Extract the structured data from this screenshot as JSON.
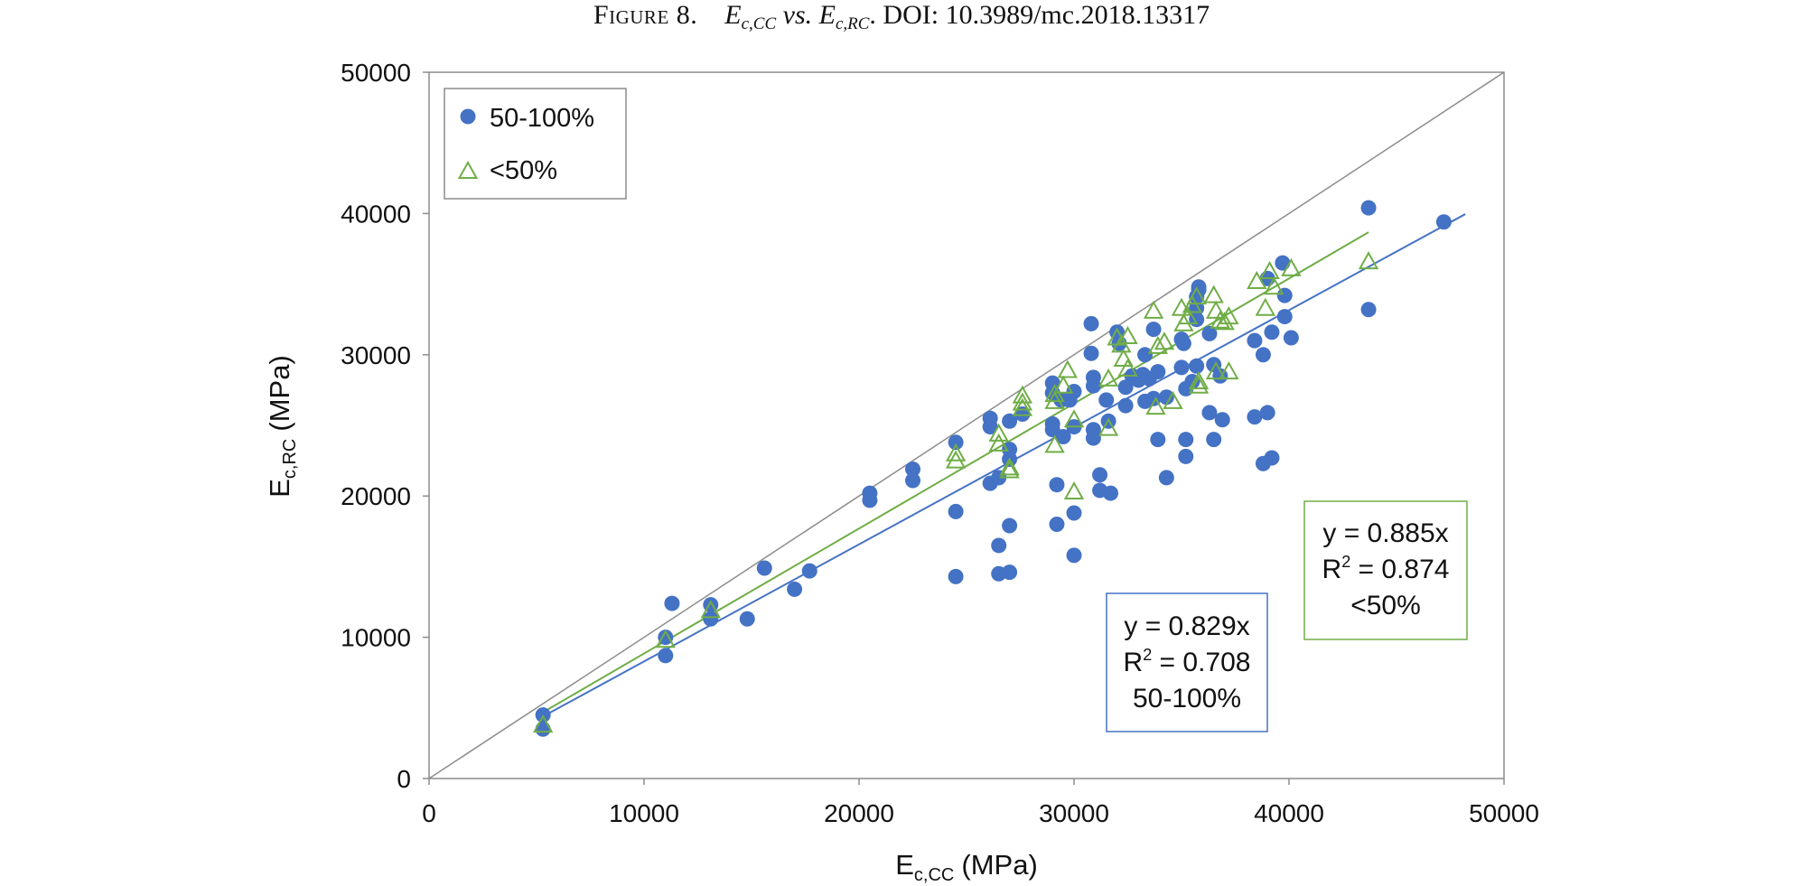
{
  "figure": {
    "label": "Figure 8.",
    "x_sym": "E",
    "x_sub": "c,CC",
    "vs": "vs.",
    "y_sym": "E",
    "y_sub": "c,RC",
    "doi": "DOI: 10.3989/mc.2018.13317"
  },
  "chart_data": {
    "type": "scatter",
    "title": "",
    "xlabel": {
      "main": "E",
      "sub": "c,CC",
      "unit": "(MPa)"
    },
    "ylabel": {
      "main": "E",
      "sub": "c,RC",
      "unit": "(MPa)"
    },
    "xlim": [
      0,
      50000
    ],
    "ylim": [
      0,
      50000
    ],
    "xticks": [
      "0",
      "10000",
      "20000",
      "30000",
      "40000",
      "50000"
    ],
    "yticks": [
      "0",
      "10000",
      "20000",
      "30000",
      "40000",
      "50000"
    ],
    "grid": false,
    "legend_position": "top-left",
    "colors": {
      "blue": "#4472C4",
      "green": "#70AD47",
      "reference": "#8c8c8c"
    },
    "series": [
      {
        "name": "50-100%",
        "marker": "circle",
        "color": "#4472C4",
        "points": [
          [
            5300,
            4500
          ],
          [
            5300,
            3500
          ],
          [
            11000,
            10000
          ],
          [
            11000,
            8700
          ],
          [
            11300,
            12400
          ],
          [
            13100,
            12300
          ],
          [
            13100,
            11300
          ],
          [
            14800,
            11300
          ],
          [
            15600,
            14900
          ],
          [
            17000,
            13400
          ],
          [
            17700,
            14700
          ],
          [
            20500,
            20200
          ],
          [
            20500,
            19700
          ],
          [
            22500,
            21900
          ],
          [
            22500,
            21100
          ],
          [
            24500,
            23800
          ],
          [
            24500,
            18900
          ],
          [
            24500,
            14300
          ],
          [
            26100,
            25500
          ],
          [
            26100,
            24900
          ],
          [
            26100,
            20900
          ],
          [
            26500,
            21300
          ],
          [
            26500,
            16500
          ],
          [
            26500,
            14500
          ],
          [
            27000,
            25300
          ],
          [
            27000,
            23300
          ],
          [
            27000,
            22600
          ],
          [
            27000,
            17900
          ],
          [
            27000,
            14600
          ],
          [
            27600,
            25800
          ],
          [
            29000,
            28000
          ],
          [
            29000,
            27300
          ],
          [
            29000,
            25100
          ],
          [
            29000,
            24700
          ],
          [
            29200,
            20800
          ],
          [
            29200,
            18000
          ],
          [
            29400,
            26800
          ],
          [
            29500,
            24200
          ],
          [
            29800,
            26800
          ],
          [
            30000,
            27400
          ],
          [
            30000,
            24900
          ],
          [
            30000,
            18800
          ],
          [
            30000,
            15800
          ],
          [
            30800,
            32200
          ],
          [
            30800,
            30100
          ],
          [
            30900,
            28400
          ],
          [
            30900,
            27800
          ],
          [
            30900,
            24700
          ],
          [
            30900,
            24100
          ],
          [
            31200,
            21500
          ],
          [
            31200,
            20400
          ],
          [
            31500,
            26800
          ],
          [
            31600,
            25300
          ],
          [
            31700,
            20200
          ],
          [
            32000,
            31600
          ],
          [
            32100,
            30800
          ],
          [
            32400,
            27700
          ],
          [
            32400,
            26400
          ],
          [
            32700,
            28500
          ],
          [
            33000,
            28200
          ],
          [
            33200,
            28600
          ],
          [
            33300,
            30000
          ],
          [
            33300,
            26700
          ],
          [
            33500,
            28300
          ],
          [
            33700,
            31800
          ],
          [
            33700,
            26900
          ],
          [
            33900,
            28800
          ],
          [
            33900,
            24000
          ],
          [
            34300,
            27000
          ],
          [
            34300,
            21300
          ],
          [
            35000,
            31100
          ],
          [
            35000,
            29100
          ],
          [
            35100,
            30800
          ],
          [
            35200,
            27600
          ],
          [
            35200,
            24000
          ],
          [
            35200,
            22800
          ],
          [
            35500,
            28100
          ],
          [
            35700,
            34100
          ],
          [
            35700,
            33300
          ],
          [
            35700,
            32500
          ],
          [
            35700,
            29200
          ],
          [
            35800,
            34600
          ],
          [
            35800,
            34800
          ],
          [
            36300,
            31500
          ],
          [
            36300,
            25900
          ],
          [
            36500,
            29300
          ],
          [
            36500,
            24000
          ],
          [
            36800,
            28500
          ],
          [
            36900,
            25400
          ],
          [
            38400,
            31000
          ],
          [
            38400,
            25600
          ],
          [
            38800,
            30000
          ],
          [
            38800,
            22300
          ],
          [
            39000,
            35400
          ],
          [
            39000,
            25900
          ],
          [
            39200,
            31600
          ],
          [
            39200,
            22700
          ],
          [
            39700,
            36500
          ],
          [
            39800,
            34200
          ],
          [
            39800,
            32700
          ],
          [
            40100,
            31200
          ],
          [
            43700,
            40400
          ],
          [
            43700,
            33200
          ],
          [
            47200,
            39400
          ]
        ],
        "trendline": {
          "slope": 0.829,
          "x_range": [
            5300,
            48200
          ]
        },
        "annotation": {
          "equation": "y = 0.829x",
          "r2_label": "R",
          "r2_exp": "2",
          "r2_value": " = 0.708",
          "group": "50-100%"
        }
      },
      {
        "name": "<50%",
        "marker": "triangle",
        "color": "#70AD47",
        "points": [
          [
            5300,
            3800
          ],
          [
            11000,
            9800
          ],
          [
            13100,
            11900
          ],
          [
            24500,
            23000
          ],
          [
            24500,
            22500
          ],
          [
            26500,
            24400
          ],
          [
            26500,
            23700
          ],
          [
            27000,
            22000
          ],
          [
            27000,
            21800
          ],
          [
            27600,
            27100
          ],
          [
            27600,
            26600
          ],
          [
            27600,
            26200
          ],
          [
            29100,
            27200
          ],
          [
            29100,
            26700
          ],
          [
            29100,
            23600
          ],
          [
            29500,
            27800
          ],
          [
            29700,
            28900
          ],
          [
            30000,
            25400
          ],
          [
            30000,
            20300
          ],
          [
            31600,
            28300
          ],
          [
            31600,
            24800
          ],
          [
            32000,
            31200
          ],
          [
            32200,
            30700
          ],
          [
            32300,
            29700
          ],
          [
            32500,
            31300
          ],
          [
            32500,
            29000
          ],
          [
            33700,
            33100
          ],
          [
            33800,
            26300
          ],
          [
            33900,
            30600
          ],
          [
            34200,
            30900
          ],
          [
            34600,
            26700
          ],
          [
            35000,
            33300
          ],
          [
            35100,
            32200
          ],
          [
            35300,
            32700
          ],
          [
            35500,
            33500
          ],
          [
            35700,
            34100
          ],
          [
            35800,
            28100
          ],
          [
            35800,
            27800
          ],
          [
            36500,
            34200
          ],
          [
            36600,
            33100
          ],
          [
            36800,
            32400
          ],
          [
            37000,
            32300
          ],
          [
            37200,
            32700
          ],
          [
            37200,
            28800
          ],
          [
            36600,
            28800
          ],
          [
            38500,
            35200
          ],
          [
            38900,
            33300
          ],
          [
            39100,
            35900
          ],
          [
            39300,
            34800
          ],
          [
            40100,
            36100
          ],
          [
            43700,
            36600
          ]
        ],
        "trendline": {
          "slope": 0.885,
          "x_range": [
            5300,
            43700
          ]
        },
        "annotation": {
          "equation": "y = 0.885x",
          "r2_label": "R",
          "r2_exp": "2",
          "r2_value": " = 0.874",
          "group": "<50%"
        }
      }
    ],
    "reference_line": {
      "x_range": [
        0,
        50000
      ],
      "slope": 1
    }
  }
}
